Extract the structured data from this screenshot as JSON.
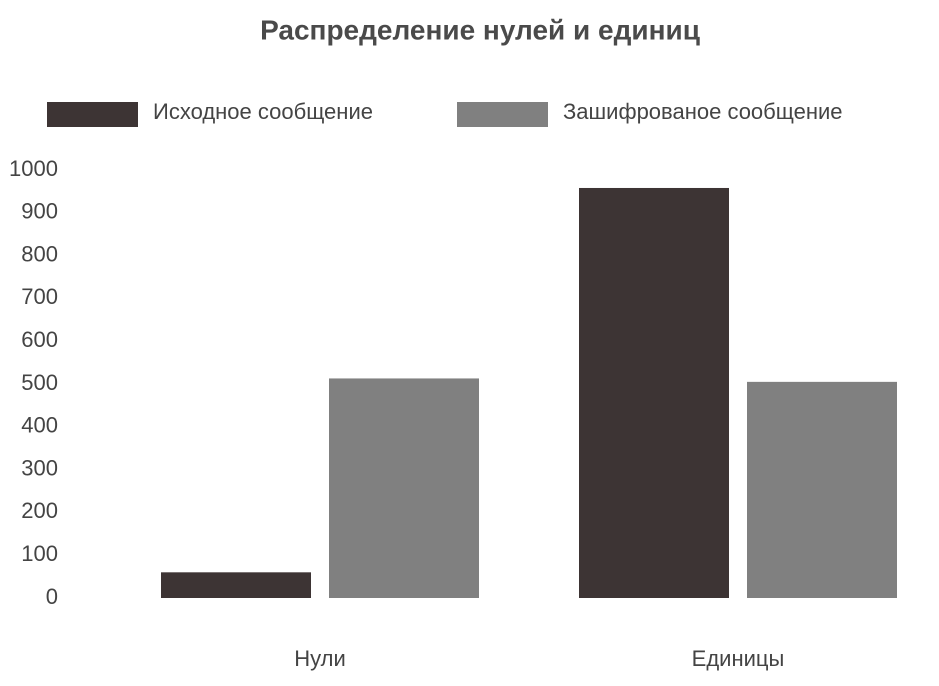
{
  "chart_data": {
    "type": "bar",
    "title": "Распределение нулей и единиц",
    "categories": [
      "Нули",
      "Единицы"
    ],
    "series": [
      {
        "name": "Исходное сообщение",
        "color": "#3d3434",
        "values": [
          60,
          958
        ]
      },
      {
        "name": "Зашифрованое сообщение",
        "color": "#808080",
        "values": [
          513,
          505
        ]
      }
    ],
    "ylim": [
      0,
      1000
    ],
    "yticks": [
      0,
      100,
      200,
      300,
      400,
      500,
      600,
      700,
      800,
      900,
      1000
    ],
    "grid": false,
    "legend": "top"
  }
}
